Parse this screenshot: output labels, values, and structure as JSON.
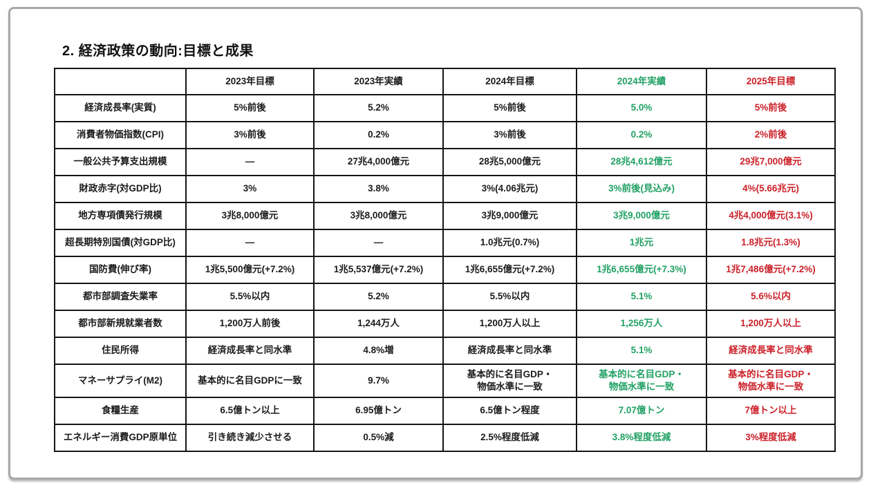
{
  "page": {
    "title": "2. 経済政策の動向:目標と成果"
  },
  "colors": {
    "green": "#21a164",
    "red": "#cb2129"
  },
  "table": {
    "columns": [
      "",
      "2023年目標",
      "2023年実績",
      "2024年目標",
      "2024年実績",
      "2025年目標"
    ],
    "rows": [
      [
        "経済成長率(実質)",
        "5%前後",
        "5.2%",
        "5%前後",
        "5.0%",
        "5%前後"
      ],
      [
        "消費者物価指数(CPI)",
        "3%前後",
        "0.2%",
        "3%前後",
        "0.2%",
        "2%前後"
      ],
      [
        "一般公共予算支出規模",
        "—",
        "27兆4,000億元",
        "28兆5,000億元",
        "28兆4,612億元",
        "29兆7,000億元"
      ],
      [
        "財政赤字(対GDP比)",
        "3%",
        "3.8%",
        "3%(4.06兆元)",
        "3%前後(見込み)",
        "4%(5.66兆元)"
      ],
      [
        "地方専項債発行規模",
        "3兆8,000億元",
        "3兆8,000億元",
        "3兆9,000億元",
        "3兆9,000億元",
        "4兆4,000億元(3.1%)"
      ],
      [
        "超長期特別国債(対GDP比)",
        "—",
        "—",
        "1.0兆元(0.7%)",
        "1兆元",
        "1.8兆元(1.3%)"
      ],
      [
        "国防費(伸び率)",
        "1兆5,500億元(+7.2%)",
        "1兆5,537億元(+7.2%)",
        "1兆6,655億元(+7.2%)",
        "1兆6,655億元(+7.3%)",
        "1兆7,486億元(+7.2%)"
      ],
      [
        "都市部調査失業率",
        "5.5%以内",
        "5.2%",
        "5.5%以内",
        "5.1%",
        "5.6%以内"
      ],
      [
        "都市部新規就業者数",
        "1,200万人前後",
        "1,244万人",
        "1,200万人以上",
        "1,256万人",
        "1,200万人以上"
      ],
      [
        "住民所得",
        "経済成長率と同水準",
        "4.8%増",
        "経済成長率と同水準",
        "5.1%",
        "経済成長率と同水準"
      ],
      [
        "マネーサプライ(M2)",
        "基本的に名目GDPに一致",
        "9.7%",
        "基本的に名目GDP・\n物価水準に一致",
        "基本的に名目GDP・\n物価水準に一致",
        "基本的に名目GDP・\n物価水準に一致"
      ],
      [
        "食糧生産",
        "6.5億トン以上",
        "6.95億トン",
        "6.5億トン程度",
        "7.07億トン",
        "7億トン以上"
      ],
      [
        "エネルギー消費GDP原単位",
        "引き続き減少させる",
        "0.5%減",
        "2.5%程度低減",
        "3.8%程度低減",
        "3%程度低減"
      ]
    ]
  }
}
